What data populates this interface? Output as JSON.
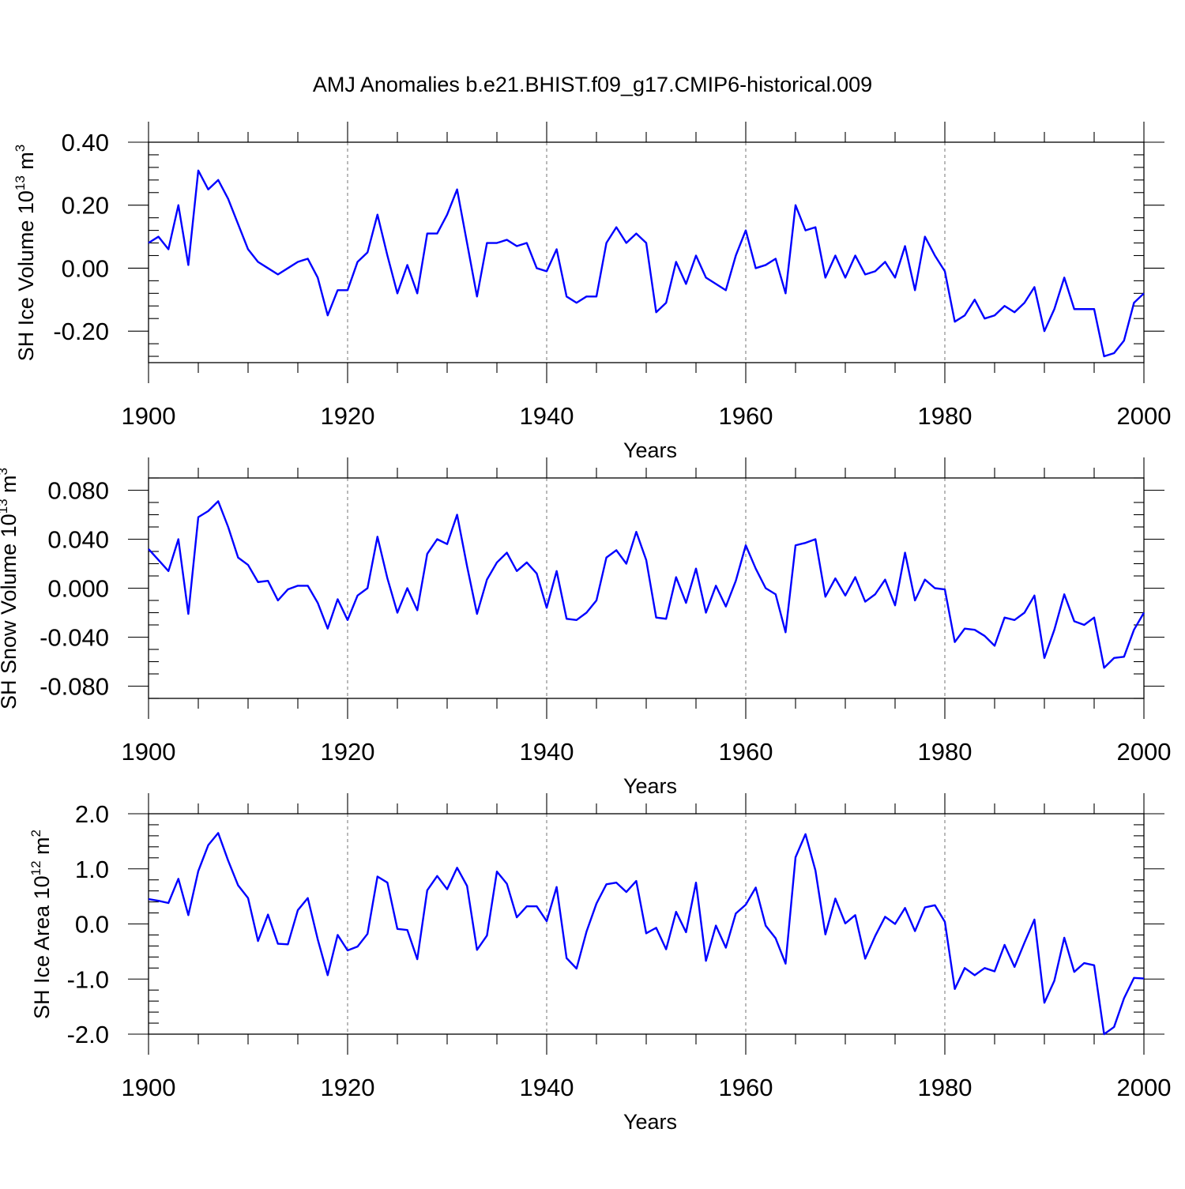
{
  "figure": {
    "title": "AMJ Anomalies b.e21.BHIST.f09_g17.CMIP6-historical.009"
  },
  "colors": {
    "series": "#0000ff",
    "axis": "#000000",
    "grid": "#808080"
  },
  "chart_data": [
    {
      "type": "line",
      "title": "AMJ Anomalies b.e21.BHIST.f09_g17.CMIP6-historical.009",
      "xlabel": "Years",
      "ylabel_main": "SH Ice Volume 10",
      "ylabel_exp": "13",
      "ylabel_unit": " m",
      "ylabel_unit_exp": "3",
      "xlim": [
        1900,
        2000
      ],
      "ylim": [
        -0.3,
        0.4
      ],
      "xticks": [
        1900,
        1920,
        1940,
        1960,
        1980,
        2000
      ],
      "xtick_labels": [
        "1900",
        "1920",
        "1940",
        "1960",
        "1980",
        "2000"
      ],
      "yticks": [
        -0.2,
        0.0,
        0.2,
        0.4
      ],
      "ytick_labels": [
        "-0.20",
        "0.00",
        "0.20",
        "0.40"
      ],
      "yminor_step": 0.04,
      "grid": "vertical dashed at major x ticks",
      "series": [
        {
          "name": "SH Ice Volume",
          "x_start": 1900,
          "values": [
            0.08,
            0.1,
            0.06,
            0.2,
            0.01,
            0.31,
            0.25,
            0.28,
            0.22,
            0.14,
            0.06,
            0.02,
            0.0,
            -0.02,
            0.0,
            0.02,
            0.03,
            -0.03,
            -0.15,
            -0.07,
            -0.07,
            0.02,
            0.05,
            0.17,
            0.04,
            -0.08,
            0.01,
            -0.08,
            0.11,
            0.11,
            0.17,
            0.25,
            0.08,
            -0.09,
            0.08,
            0.08,
            0.09,
            0.07,
            0.08,
            0.0,
            -0.01,
            0.06,
            -0.09,
            -0.11,
            -0.09,
            -0.09,
            0.08,
            0.13,
            0.08,
            0.11,
            0.08,
            -0.14,
            -0.11,
            0.02,
            -0.05,
            0.04,
            -0.03,
            -0.05,
            -0.07,
            0.04,
            0.12,
            0.0,
            0.01,
            0.03,
            -0.08,
            0.2,
            0.12,
            0.13,
            -0.03,
            0.04,
            -0.03,
            0.04,
            -0.02,
            -0.01,
            0.02,
            -0.03,
            0.07,
            -0.07,
            0.1,
            0.04,
            -0.01,
            -0.17,
            -0.15,
            -0.1,
            -0.16,
            -0.15,
            -0.12,
            -0.14,
            -0.11,
            -0.06,
            -0.2,
            -0.13,
            -0.03,
            -0.13,
            -0.13,
            -0.13,
            -0.28,
            -0.27,
            -0.23,
            -0.11,
            -0.08
          ]
        }
      ]
    },
    {
      "type": "line",
      "xlabel": "Years",
      "ylabel_main": "SH Snow Volume 10",
      "ylabel_exp": "13",
      "ylabel_unit": " m",
      "ylabel_unit_exp": "3",
      "xlim": [
        1900,
        2000
      ],
      "ylim": [
        -0.09,
        0.09
      ],
      "xticks": [
        1900,
        1920,
        1940,
        1960,
        1980,
        2000
      ],
      "xtick_labels": [
        "1900",
        "1920",
        "1940",
        "1960",
        "1980",
        "2000"
      ],
      "yticks": [
        -0.08,
        -0.04,
        0.0,
        0.04,
        0.08
      ],
      "ytick_labels": [
        "-0.080",
        "-0.040",
        "0.000",
        "0.040",
        "0.080"
      ],
      "yminor_step": 0.01,
      "grid": "vertical dashed at major x ticks",
      "series": [
        {
          "name": "SH Snow Volume",
          "x_start": 1900,
          "values": [
            0.032,
            0.023,
            0.014,
            0.04,
            -0.021,
            0.058,
            0.063,
            0.071,
            0.05,
            0.025,
            0.019,
            0.005,
            0.006,
            -0.01,
            -0.001,
            0.002,
            0.002,
            -0.012,
            -0.033,
            -0.009,
            -0.026,
            -0.006,
            0.0,
            0.042,
            0.008,
            -0.02,
            0.0,
            -0.018,
            0.028,
            0.04,
            0.036,
            0.06,
            0.018,
            -0.021,
            0.007,
            0.021,
            0.029,
            0.014,
            0.021,
            0.012,
            -0.016,
            0.014,
            -0.025,
            -0.026,
            -0.02,
            -0.01,
            0.025,
            0.031,
            0.02,
            0.046,
            0.023,
            -0.024,
            -0.025,
            0.009,
            -0.012,
            0.016,
            -0.02,
            0.002,
            -0.015,
            0.006,
            0.035,
            0.016,
            0.0,
            -0.005,
            -0.036,
            0.035,
            0.037,
            0.04,
            -0.007,
            0.008,
            -0.006,
            0.009,
            -0.011,
            -0.005,
            0.007,
            -0.014,
            0.029,
            -0.01,
            0.007,
            0.0,
            -0.001,
            -0.044,
            -0.033,
            -0.034,
            -0.039,
            -0.047,
            -0.024,
            -0.026,
            -0.02,
            -0.006,
            -0.057,
            -0.034,
            -0.005,
            -0.027,
            -0.03,
            -0.024,
            -0.065,
            -0.057,
            -0.056,
            -0.034,
            -0.02
          ]
        }
      ]
    },
    {
      "type": "line",
      "xlabel": "Years",
      "ylabel_main": "SH Ice Area 10",
      "ylabel_exp": "12",
      "ylabel_unit": " m",
      "ylabel_unit_exp": "2",
      "xlim": [
        1900,
        2000
      ],
      "ylim": [
        -2.0,
        2.0
      ],
      "xticks": [
        1900,
        1920,
        1940,
        1960,
        1980,
        2000
      ],
      "xtick_labels": [
        "1900",
        "1920",
        "1940",
        "1960",
        "1980",
        "2000"
      ],
      "yticks": [
        -2.0,
        -1.0,
        0.0,
        1.0,
        2.0
      ],
      "ytick_labels": [
        "-2.0",
        "-1.0",
        "0.0",
        "1.0",
        "2.0"
      ],
      "yminor_step": 0.2,
      "grid": "vertical dashed at major x ticks",
      "series": [
        {
          "name": "SH Ice Area",
          "x_start": 1900,
          "values": [
            0.45,
            0.42,
            0.38,
            0.82,
            0.16,
            0.96,
            1.43,
            1.65,
            1.15,
            0.7,
            0.47,
            -0.31,
            0.17,
            -0.36,
            -0.37,
            0.25,
            0.47,
            -0.28,
            -0.93,
            -0.2,
            -0.48,
            -0.41,
            -0.18,
            0.86,
            0.75,
            -0.09,
            -0.11,
            -0.64,
            0.61,
            0.87,
            0.63,
            1.02,
            0.69,
            -0.47,
            -0.21,
            0.95,
            0.73,
            0.12,
            0.32,
            0.32,
            0.05,
            0.67,
            -0.62,
            -0.81,
            -0.14,
            0.37,
            0.72,
            0.75,
            0.58,
            0.78,
            -0.17,
            -0.07,
            -0.46,
            0.22,
            -0.15,
            0.75,
            -0.67,
            -0.03,
            -0.43,
            0.19,
            0.35,
            0.66,
            -0.03,
            -0.26,
            -0.72,
            1.21,
            1.63,
            0.97,
            -0.19,
            0.46,
            0.01,
            0.16,
            -0.63,
            -0.22,
            0.13,
            0.0,
            0.29,
            -0.13,
            0.3,
            0.34,
            0.04,
            -1.18,
            -0.8,
            -0.93,
            -0.8,
            -0.86,
            -0.38,
            -0.78,
            -0.34,
            0.08,
            -1.43,
            -1.03,
            -0.25,
            -0.87,
            -0.71,
            -0.75,
            -2.0,
            -1.87,
            -1.35,
            -0.98,
            -0.99
          ]
        }
      ]
    }
  ]
}
